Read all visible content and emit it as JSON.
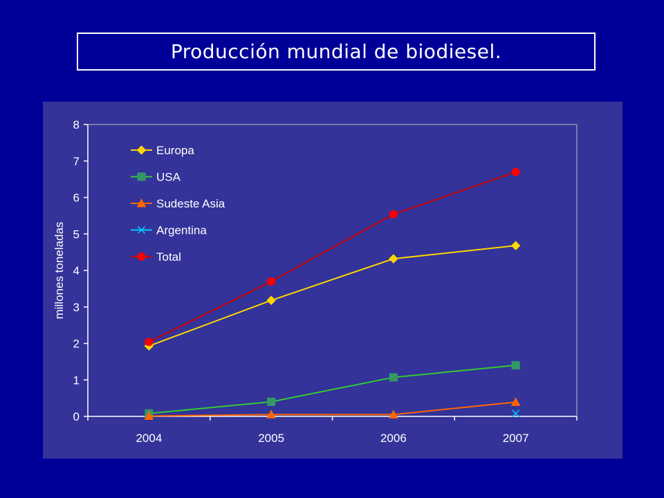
{
  "slide": {
    "title": "Producción mundial de biodiesel."
  },
  "chart_data": {
    "type": "line",
    "title": "",
    "xlabel": "",
    "ylabel": "millones toneladas",
    "categories": [
      "2004",
      "2005",
      "2006",
      "2007"
    ],
    "ylim": [
      0,
      8
    ],
    "yticks": [
      0,
      1,
      2,
      3,
      4,
      5,
      6,
      7,
      8
    ],
    "grid": false,
    "legend_position": "top-left",
    "series": [
      {
        "name": "Europa",
        "values": [
          1.93,
          3.18,
          4.32,
          4.68
        ],
        "color": "#ffd700",
        "marker": "diamond"
      },
      {
        "name": "USA",
        "values": [
          0.08,
          0.4,
          1.07,
          1.4
        ],
        "color": "#33cc33",
        "marker": "square",
        "marker_color": "#339966"
      },
      {
        "name": "Sudeste Asia",
        "values": [
          0.01,
          0.05,
          0.05,
          0.39
        ],
        "color": "#ff6600",
        "marker": "triangle"
      },
      {
        "name": "Argentina",
        "values": [
          null,
          null,
          null,
          0.08
        ],
        "color": "#00ccff",
        "marker": "x"
      },
      {
        "name": "Total",
        "values": [
          2.04,
          3.7,
          5.54,
          6.7
        ],
        "color": "#ff0000",
        "marker": "circle",
        "line_color": "#cc0000"
      }
    ]
  },
  "colors": {
    "background": "#000099",
    "plot_panel": "#333399",
    "text": "#ffffff"
  }
}
